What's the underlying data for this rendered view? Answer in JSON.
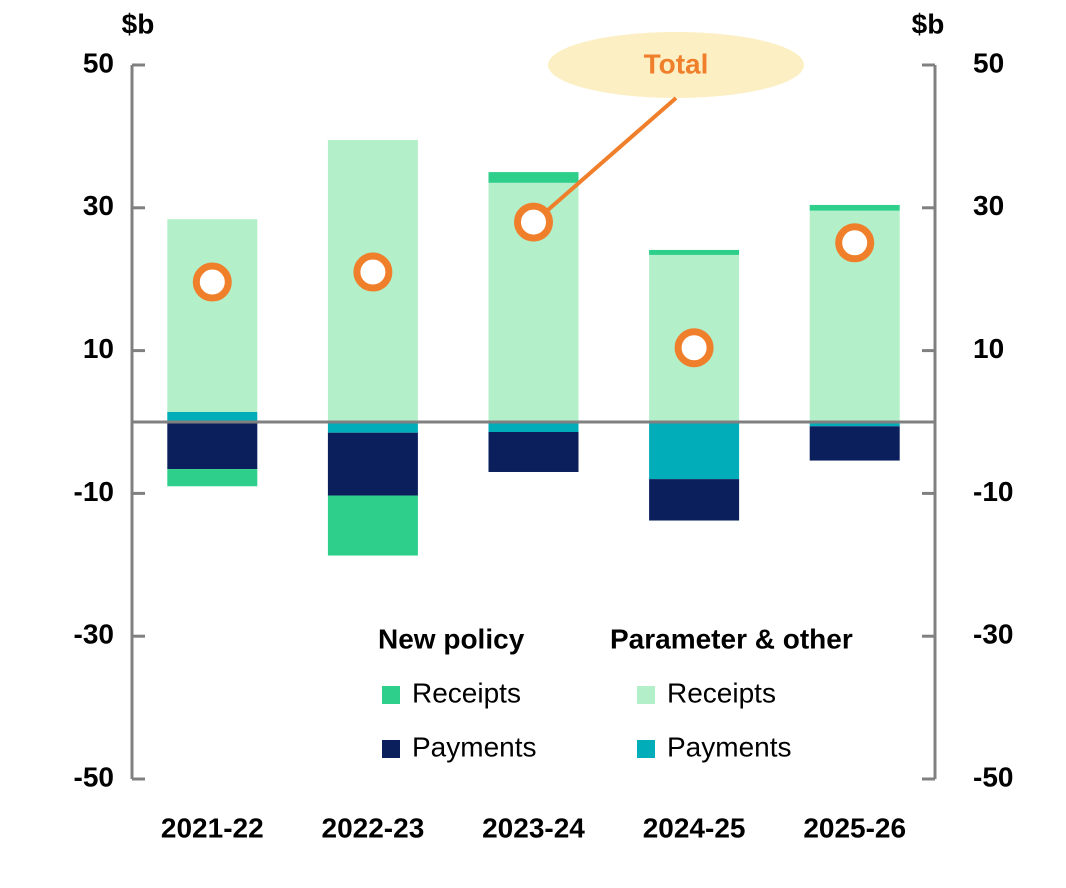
{
  "chart_data": {
    "type": "bar",
    "y_label": "$b",
    "y2_label": "$b",
    "categories": [
      "2021-22",
      "2022-23",
      "2023-24",
      "2024-25",
      "2025-26"
    ],
    "legend_groups": [
      "New policy",
      "Parameter & other"
    ],
    "series": [
      {
        "name": "Receipts",
        "group": 0,
        "color": "#2ecf8a",
        "values": [
          -2.4,
          -8.4,
          1.5,
          0.7,
          0.8
        ]
      },
      {
        "name": "Payments",
        "group": 0,
        "color": "#0a1f5c",
        "values": [
          -6.6,
          -8.8,
          -5.6,
          -5.8,
          -4.8
        ]
      },
      {
        "name": "Receipts",
        "group": 1,
        "color": "#b3efc9",
        "values": [
          27.0,
          39.5,
          33.5,
          23.4,
          29.6
        ]
      },
      {
        "name": "Payments",
        "group": 1,
        "color": "#00adb8",
        "values": [
          1.4,
          -1.5,
          -1.4,
          -8.0,
          -0.6
        ]
      }
    ],
    "total": {
      "name": "Total",
      "color": "#f07f2b",
      "values": [
        19.6,
        21.0,
        28.0,
        10.4,
        25.1
      ]
    },
    "ylim": [
      -50,
      50
    ],
    "yticks": [
      -50,
      -30,
      -10,
      10,
      30,
      50
    ],
    "y2lim": [
      -50,
      50
    ],
    "y2ticks": [
      -50,
      -30,
      -10,
      10,
      30,
      50
    ]
  }
}
